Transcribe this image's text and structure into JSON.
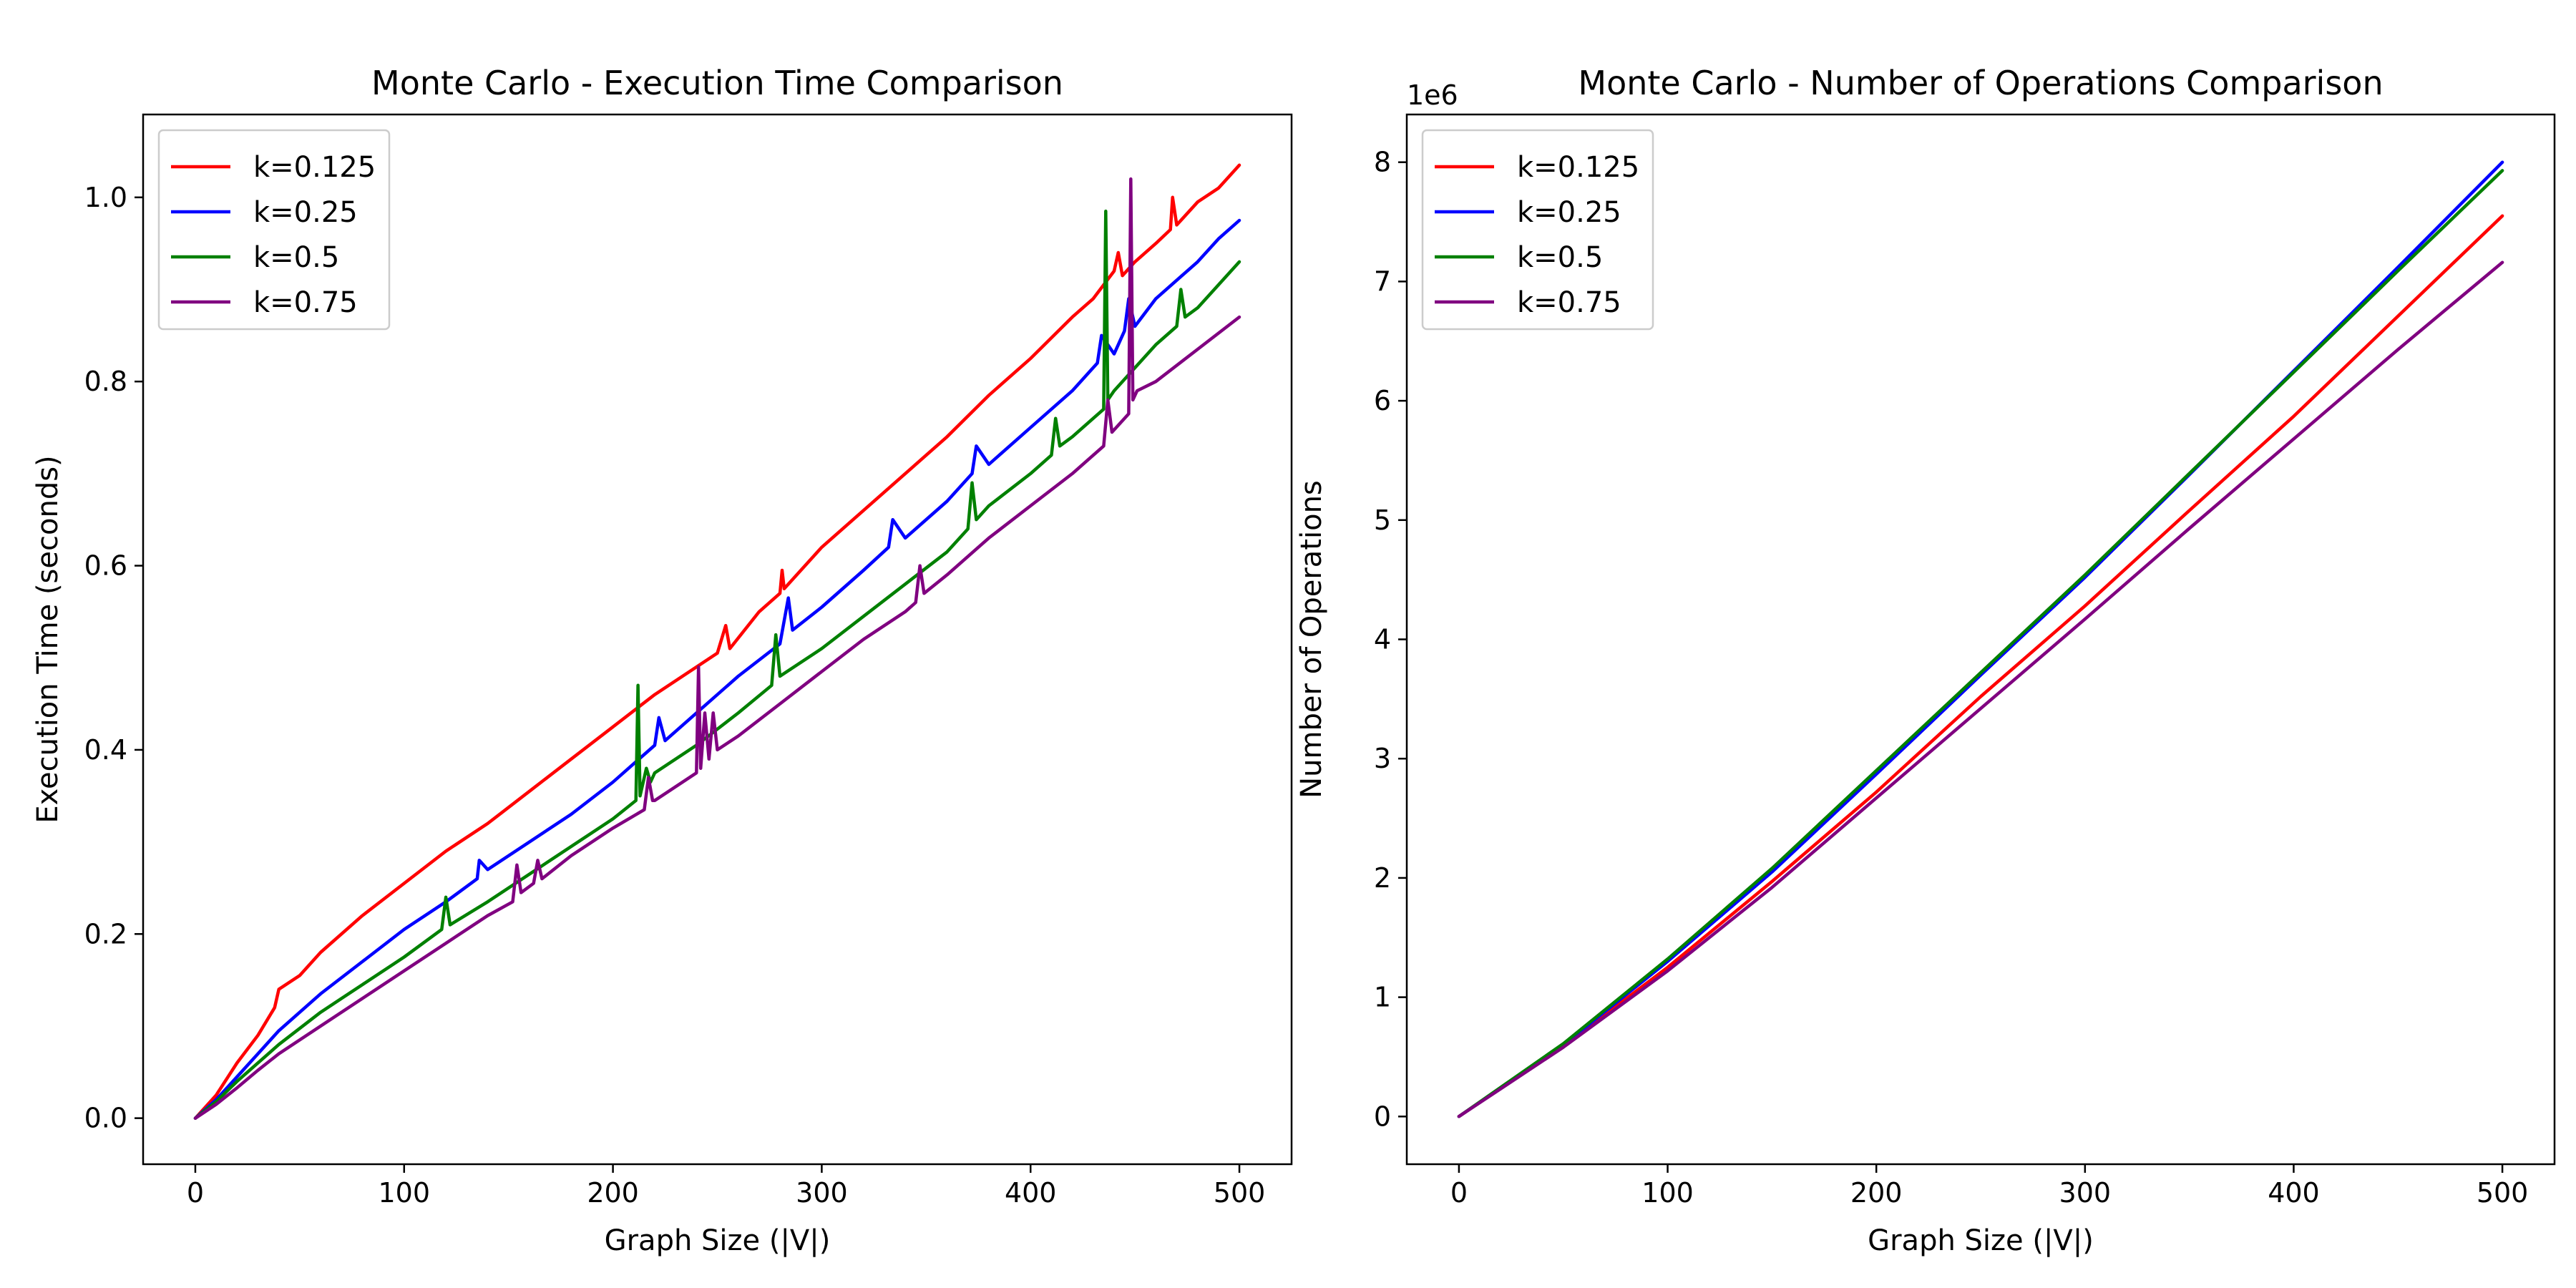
{
  "chart_data": [
    {
      "type": "line",
      "title": "Monte Carlo - Execution Time Comparison",
      "xlabel": "Graph Size (|V|)",
      "ylabel": "Execution Time (seconds)",
      "xlim": [
        -25,
        525
      ],
      "ylim": [
        -0.05,
        1.09
      ],
      "xticks": [
        0,
        100,
        200,
        300,
        400,
        500
      ],
      "yticks": [
        0.0,
        0.2,
        0.4,
        0.6,
        0.8,
        1.0
      ],
      "ytick_labels": [
        "0.0",
        "0.2",
        "0.4",
        "0.6",
        "0.8",
        "1.0"
      ],
      "grid": false,
      "legend": "top-left",
      "series": [
        {
          "name": "k=0.125",
          "color": "#ff0000",
          "x": [
            0,
            10,
            20,
            30,
            38,
            40,
            50,
            60,
            80,
            100,
            120,
            140,
            160,
            180,
            200,
            220,
            240,
            250,
            254,
            256,
            270,
            280,
            281,
            282,
            300,
            320,
            340,
            360,
            380,
            400,
            420,
            430,
            440,
            442,
            444,
            450,
            460,
            467,
            468,
            470,
            480,
            490,
            500
          ],
          "y": [
            0.0,
            0.025,
            0.06,
            0.09,
            0.12,
            0.14,
            0.155,
            0.18,
            0.22,
            0.255,
            0.29,
            0.32,
            0.355,
            0.39,
            0.425,
            0.46,
            0.49,
            0.505,
            0.535,
            0.51,
            0.55,
            0.57,
            0.595,
            0.575,
            0.62,
            0.66,
            0.7,
            0.74,
            0.785,
            0.825,
            0.87,
            0.89,
            0.92,
            0.94,
            0.915,
            0.93,
            0.95,
            0.965,
            1.0,
            0.97,
            0.995,
            1.01,
            1.035
          ]
        },
        {
          "name": "k=0.25",
          "color": "#0000ff",
          "x": [
            0,
            10,
            20,
            30,
            40,
            60,
            80,
            100,
            120,
            135,
            136,
            140,
            160,
            180,
            200,
            210,
            220,
            222,
            225,
            240,
            260,
            280,
            284,
            286,
            300,
            320,
            332,
            334,
            340,
            360,
            372,
            374,
            380,
            400,
            420,
            432,
            434,
            440,
            445,
            447,
            450,
            460,
            480,
            490,
            500
          ],
          "y": [
            0.0,
            0.02,
            0.045,
            0.07,
            0.095,
            0.135,
            0.17,
            0.205,
            0.235,
            0.26,
            0.28,
            0.27,
            0.3,
            0.33,
            0.365,
            0.385,
            0.405,
            0.435,
            0.41,
            0.44,
            0.48,
            0.515,
            0.565,
            0.53,
            0.555,
            0.595,
            0.62,
            0.65,
            0.63,
            0.67,
            0.7,
            0.73,
            0.71,
            0.75,
            0.79,
            0.82,
            0.85,
            0.83,
            0.855,
            0.89,
            0.86,
            0.89,
            0.93,
            0.955,
            0.975
          ]
        },
        {
          "name": "k=0.5",
          "color": "#008000",
          "x": [
            0,
            10,
            20,
            30,
            40,
            60,
            80,
            100,
            118,
            120,
            122,
            140,
            160,
            180,
            200,
            211,
            212,
            213,
            216,
            218,
            220,
            240,
            260,
            276,
            278,
            280,
            300,
            320,
            340,
            360,
            370,
            372,
            374,
            380,
            400,
            410,
            412,
            414,
            420,
            435,
            436,
            437,
            440,
            460,
            470,
            472,
            474,
            480,
            500
          ],
          "y": [
            0.0,
            0.018,
            0.04,
            0.06,
            0.08,
            0.115,
            0.145,
            0.175,
            0.205,
            0.24,
            0.21,
            0.235,
            0.265,
            0.295,
            0.325,
            0.345,
            0.47,
            0.35,
            0.38,
            0.365,
            0.375,
            0.405,
            0.44,
            0.47,
            0.525,
            0.48,
            0.51,
            0.545,
            0.58,
            0.615,
            0.64,
            0.69,
            0.65,
            0.665,
            0.7,
            0.72,
            0.76,
            0.73,
            0.74,
            0.77,
            0.985,
            0.78,
            0.79,
            0.84,
            0.86,
            0.9,
            0.87,
            0.88,
            0.93
          ]
        },
        {
          "name": "k=0.75",
          "color": "#800080",
          "x": [
            0,
            10,
            20,
            30,
            40,
            60,
            80,
            100,
            120,
            140,
            152,
            154,
            156,
            162,
            164,
            166,
            180,
            200,
            215,
            217,
            219,
            220,
            240,
            241,
            242,
            244,
            246,
            248,
            250,
            260,
            280,
            300,
            320,
            340,
            345,
            347,
            349,
            360,
            380,
            400,
            420,
            435,
            437,
            439,
            447,
            448,
            449,
            451,
            460,
            480,
            500
          ],
          "y": [
            0.0,
            0.015,
            0.033,
            0.052,
            0.07,
            0.1,
            0.13,
            0.16,
            0.19,
            0.22,
            0.235,
            0.275,
            0.245,
            0.255,
            0.28,
            0.26,
            0.285,
            0.315,
            0.335,
            0.37,
            0.345,
            0.345,
            0.375,
            0.49,
            0.38,
            0.44,
            0.39,
            0.44,
            0.4,
            0.415,
            0.45,
            0.485,
            0.52,
            0.55,
            0.56,
            0.6,
            0.57,
            0.59,
            0.63,
            0.665,
            0.7,
            0.73,
            0.78,
            0.745,
            0.765,
            1.02,
            0.78,
            0.79,
            0.8,
            0.835,
            0.87
          ]
        }
      ]
    },
    {
      "type": "line",
      "title": "Monte Carlo - Number of Operations Comparison",
      "xlabel": "Graph Size (|V|)",
      "ylabel": "Number of Operations",
      "offset_text": "1e6",
      "xlim": [
        -25,
        525
      ],
      "ylim": [
        -0.4,
        8.4
      ],
      "xticks": [
        0,
        100,
        200,
        300,
        400,
        500
      ],
      "yticks": [
        0,
        1,
        2,
        3,
        4,
        5,
        6,
        7,
        8
      ],
      "ytick_labels": [
        "0",
        "1",
        "2",
        "3",
        "4",
        "5",
        "6",
        "7",
        "8"
      ],
      "grid": false,
      "legend": "top-left",
      "series": [
        {
          "name": "k=0.125",
          "color": "#ff0000",
          "x": [
            0,
            50,
            100,
            150,
            200,
            250,
            300,
            350,
            400,
            450,
            500
          ],
          "y": [
            0.0,
            0.59,
            1.25,
            1.97,
            2.72,
            3.52,
            4.28,
            5.08,
            5.87,
            6.71,
            7.55
          ]
        },
        {
          "name": "k=0.25",
          "color": "#0000ff",
          "x": [
            0,
            50,
            100,
            150,
            200,
            250,
            300,
            350,
            400,
            450,
            500
          ],
          "y": [
            0.0,
            0.6,
            1.3,
            2.05,
            2.87,
            3.7,
            4.52,
            5.38,
            6.25,
            7.12,
            8.0
          ]
        },
        {
          "name": "k=0.5",
          "color": "#008000",
          "x": [
            0,
            50,
            100,
            150,
            200,
            250,
            300,
            350,
            400,
            450,
            500
          ],
          "y": [
            0.0,
            0.61,
            1.32,
            2.08,
            2.9,
            3.72,
            4.54,
            5.39,
            6.24,
            7.09,
            7.93
          ]
        },
        {
          "name": "k=0.75",
          "color": "#800080",
          "x": [
            0,
            50,
            100,
            150,
            200,
            250,
            300,
            350,
            400,
            450,
            500
          ],
          "y": [
            0.0,
            0.58,
            1.22,
            1.92,
            2.67,
            3.42,
            4.17,
            4.93,
            5.68,
            6.43,
            7.16
          ]
        }
      ]
    }
  ]
}
